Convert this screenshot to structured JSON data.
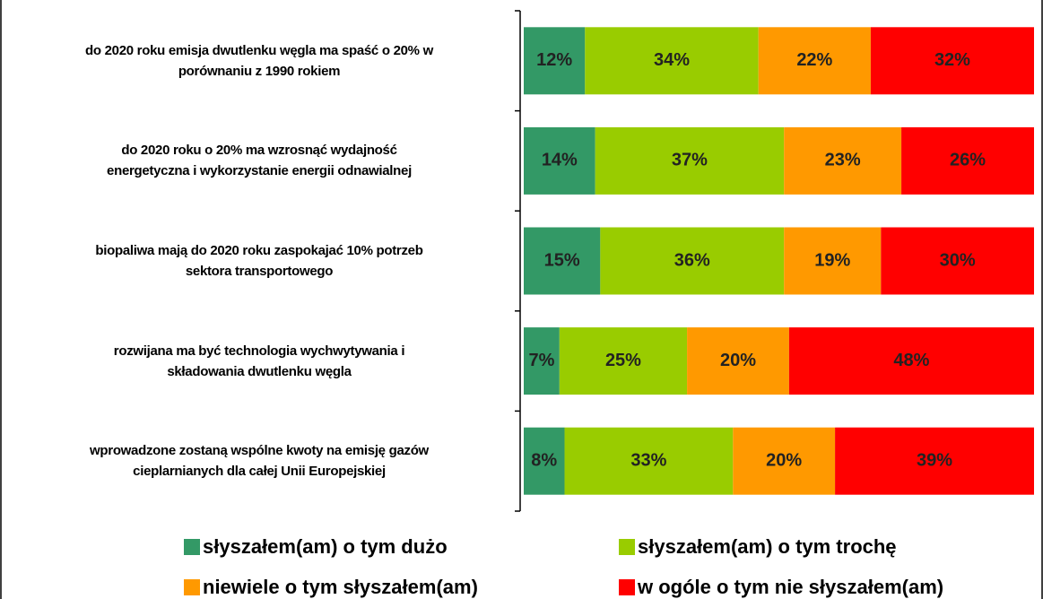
{
  "chart_data": {
    "type": "stacked_barh",
    "categories": [
      "do 2020 roku emisja dwutlenku węgla ma spaść o 20% w\nporównaniu z 1990 rokiem",
      "do 2020 roku o 20% ma wzrosnąć wydajność\nenergetyczna i wykorzystanie energii odnawialnej",
      "biopaliwa mają do 2020 roku zaspokajać 10% potrzeb\nsektora transportowego",
      "rozwijana ma być technologia wychwytywania i\nskładowania dwutlenku węgla",
      "wprowadzone zostaną wspólne kwoty na emisję gazów\ncieplarnianych dla całej Unii Europejskiej"
    ],
    "series": [
      {
        "name": "słyszałem(am) o tym dużo",
        "color": "#339966",
        "values": [
          12,
          14,
          15,
          7,
          8
        ],
        "value_labels": [
          "12%",
          "14%",
          "15%",
          "7%",
          "8%"
        ]
      },
      {
        "name": "słyszałem(am) o tym trochę",
        "color": "#99cc00",
        "values": [
          34,
          37,
          36,
          25,
          33
        ],
        "value_labels": [
          "34%",
          "37%",
          "36%",
          "25%",
          "33%"
        ]
      },
      {
        "name": "niewiele o tym słyszałem(am)",
        "color": "#ff9900",
        "values": [
          22,
          23,
          19,
          20,
          20
        ],
        "value_labels": [
          "22%",
          "23%",
          "19%",
          "20%",
          "20%"
        ]
      },
      {
        "name": "w ogóle o tym nie słyszałem(am)",
        "color": "#ff0000",
        "values": [
          32,
          26,
          30,
          48,
          39
        ],
        "value_labels": [
          "32%",
          "26%",
          "30%",
          "48%",
          "39%"
        ]
      }
    ],
    "xlim": [
      0,
      100
    ]
  }
}
